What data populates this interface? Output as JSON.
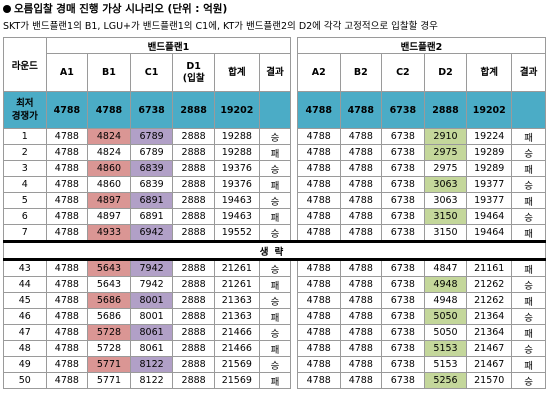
{
  "title": "오름입찰 경매 진행 가상 시나리오 (단위 : 억원)",
  "subtitle": "SKT가 밴드플랜1의 B1, LGU+가 밴드플랜1의 C1에,  KT가 밴드플랜2의 D2에 각각 고정적으로 입찰할 경우",
  "header": {
    "round": "라운드",
    "plan1": "밴드플랜1",
    "plan2": "밴드플랜2",
    "p1_cols": [
      "A1",
      "B1",
      "C1",
      "D1\n(입찰",
      "합계",
      "결과"
    ],
    "p2_cols": [
      "A2",
      "B2",
      "C2",
      "D2",
      "합계",
      "결과"
    ]
  },
  "min_row": {
    "label": "최저\n경쟁가",
    "p1": [
      "4788",
      "4788",
      "6738",
      "2888",
      "19202"
    ],
    "p2": [
      "4788",
      "4788",
      "6738",
      "2888",
      "19202"
    ]
  },
  "omitted_label": "생략",
  "colors": {
    "header_min": "#4bacc6",
    "pink": "#da9694",
    "purple": "#b1a0c7",
    "green": "#c4d79b"
  },
  "rows_top": [
    {
      "r": "1",
      "p1": [
        "4788",
        "4824",
        "6789",
        "2888",
        "19288",
        "승"
      ],
      "p2": [
        "4788",
        "4788",
        "6738",
        "2910",
        "19224",
        "패"
      ],
      "hl1": [
        "",
        "pink",
        "purple"
      ],
      "hl2": "green"
    },
    {
      "r": "2",
      "p1": [
        "4788",
        "4824",
        "6789",
        "2888",
        "19288",
        "패"
      ],
      "p2": [
        "4788",
        "4788",
        "6738",
        "2975",
        "19289",
        "승"
      ],
      "hl1": [
        "",
        "",
        ""
      ],
      "hl2": "green"
    },
    {
      "r": "3",
      "p1": [
        "4788",
        "4860",
        "6839",
        "2888",
        "19376",
        "승"
      ],
      "p2": [
        "4788",
        "4788",
        "6738",
        "2975",
        "19289",
        "패"
      ],
      "hl1": [
        "",
        "pink",
        "purple"
      ],
      "hl2": ""
    },
    {
      "r": "4",
      "p1": [
        "4788",
        "4860",
        "6839",
        "2888",
        "19376",
        "패"
      ],
      "p2": [
        "4788",
        "4788",
        "6738",
        "3063",
        "19377",
        "승"
      ],
      "hl1": [
        "",
        "",
        ""
      ],
      "hl2": "green"
    },
    {
      "r": "5",
      "p1": [
        "4788",
        "4897",
        "6891",
        "2888",
        "19463",
        "승"
      ],
      "p2": [
        "4788",
        "4788",
        "6738",
        "3063",
        "19377",
        "패"
      ],
      "hl1": [
        "",
        "pink",
        "purple"
      ],
      "hl2": ""
    },
    {
      "r": "6",
      "p1": [
        "4788",
        "4897",
        "6891",
        "2888",
        "19463",
        "패"
      ],
      "p2": [
        "4788",
        "4788",
        "6738",
        "3150",
        "19464",
        "승"
      ],
      "hl1": [
        "",
        "",
        ""
      ],
      "hl2": "green"
    },
    {
      "r": "7",
      "p1": [
        "4788",
        "4933",
        "6942",
        "2888",
        "19552",
        "승"
      ],
      "p2": [
        "4788",
        "4788",
        "6738",
        "3150",
        "19464",
        "패"
      ],
      "hl1": [
        "",
        "pink",
        "purple"
      ],
      "hl2": ""
    }
  ],
  "rows_bottom": [
    {
      "r": "43",
      "p1": [
        "4788",
        "5643",
        "7942",
        "2888",
        "21261",
        "승"
      ],
      "p2": [
        "4788",
        "4788",
        "6738",
        "4847",
        "21161",
        "패"
      ],
      "hl1": [
        "",
        "pink",
        "purple"
      ],
      "hl2": ""
    },
    {
      "r": "44",
      "p1": [
        "4788",
        "5643",
        "7942",
        "2888",
        "21261",
        "패"
      ],
      "p2": [
        "4788",
        "4788",
        "6738",
        "4948",
        "21262",
        "승"
      ],
      "hl1": [
        "",
        "",
        ""
      ],
      "hl2": "green"
    },
    {
      "r": "45",
      "p1": [
        "4788",
        "5686",
        "8001",
        "2888",
        "21363",
        "승"
      ],
      "p2": [
        "4788",
        "4788",
        "6738",
        "4948",
        "21262",
        "패"
      ],
      "hl1": [
        "",
        "pink",
        "purple"
      ],
      "hl2": ""
    },
    {
      "r": "46",
      "p1": [
        "4788",
        "5686",
        "8001",
        "2888",
        "21363",
        "패"
      ],
      "p2": [
        "4788",
        "4788",
        "6738",
        "5050",
        "21364",
        "승"
      ],
      "hl1": [
        "",
        "",
        ""
      ],
      "hl2": "green"
    },
    {
      "r": "47",
      "p1": [
        "4788",
        "5728",
        "8061",
        "2888",
        "21466",
        "승"
      ],
      "p2": [
        "4788",
        "4788",
        "6738",
        "5050",
        "21364",
        "패"
      ],
      "hl1": [
        "",
        "pink",
        "purple"
      ],
      "hl2": ""
    },
    {
      "r": "48",
      "p1": [
        "4788",
        "5728",
        "8061",
        "2888",
        "21466",
        "패"
      ],
      "p2": [
        "4788",
        "4788",
        "6738",
        "5153",
        "21467",
        "승"
      ],
      "hl1": [
        "",
        "",
        ""
      ],
      "hl2": "green"
    },
    {
      "r": "49",
      "p1": [
        "4788",
        "5771",
        "8122",
        "2888",
        "21569",
        "승"
      ],
      "p2": [
        "4788",
        "4788",
        "6738",
        "5153",
        "21467",
        "패"
      ],
      "hl1": [
        "",
        "pink",
        "purple"
      ],
      "hl2": ""
    },
    {
      "r": "50",
      "p1": [
        "4788",
        "5771",
        "8122",
        "2888",
        "21569",
        "패"
      ],
      "p2": [
        "4788",
        "4788",
        "6738",
        "5256",
        "21570",
        "승"
      ],
      "hl1": [
        "",
        "",
        ""
      ],
      "hl2": "green"
    }
  ]
}
